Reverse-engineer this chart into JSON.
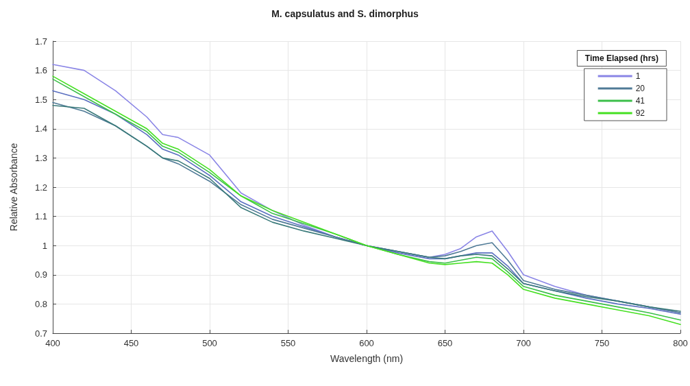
{
  "chart_data": {
    "type": "line",
    "title": "M. capsulatus and S. dimorphus",
    "xlabel": "Wavelength (nm)",
    "ylabel": "Relative Absorbance",
    "legend_title": "Time Elapsed (hrs)",
    "x": [
      400,
      420,
      440,
      460,
      470,
      480,
      500,
      520,
      540,
      560,
      580,
      600,
      620,
      640,
      650,
      660,
      670,
      680,
      690,
      700,
      720,
      740,
      760,
      780,
      800
    ],
    "series": [
      {
        "name": "1",
        "color": "#8a85e6",
        "values": [
          1.62,
          1.6,
          1.53,
          1.44,
          1.38,
          1.37,
          1.31,
          1.18,
          1.12,
          1.07,
          1.03,
          1.0,
          0.98,
          0.96,
          0.97,
          0.99,
          1.03,
          1.05,
          0.98,
          0.9,
          0.86,
          0.83,
          0.81,
          0.79,
          0.77
        ]
      },
      {
        "color": "#5a6fc0",
        "values": [
          1.53,
          1.5,
          1.45,
          1.38,
          1.33,
          1.31,
          1.24,
          1.15,
          1.1,
          1.065,
          1.03,
          1.0,
          0.975,
          0.955,
          0.955,
          0.965,
          0.975,
          0.975,
          0.93,
          0.87,
          0.845,
          0.82,
          0.8,
          0.785,
          0.765
        ]
      },
      {
        "name": "20",
        "color": "#4f7a96",
        "values": [
          1.49,
          1.46,
          1.41,
          1.34,
          1.3,
          1.28,
          1.22,
          1.14,
          1.09,
          1.06,
          1.03,
          1.0,
          0.98,
          0.96,
          0.965,
          0.98,
          1.0,
          1.01,
          0.95,
          0.88,
          0.85,
          0.83,
          0.81,
          0.79,
          0.77
        ]
      },
      {
        "color": "#3a7a7a",
        "values": [
          1.48,
          1.47,
          1.41,
          1.34,
          1.3,
          1.29,
          1.23,
          1.13,
          1.08,
          1.05,
          1.025,
          1.0,
          0.98,
          0.96,
          0.955,
          0.965,
          0.97,
          0.965,
          0.92,
          0.87,
          0.845,
          0.825,
          0.81,
          0.79,
          0.775
        ]
      },
      {
        "name": "41",
        "color": "#3cbf4a",
        "values": [
          1.57,
          1.51,
          1.45,
          1.39,
          1.34,
          1.32,
          1.25,
          1.17,
          1.11,
          1.075,
          1.04,
          1.0,
          0.97,
          0.945,
          0.94,
          0.95,
          0.96,
          0.955,
          0.91,
          0.86,
          0.83,
          0.81,
          0.79,
          0.77,
          0.745
        ]
      },
      {
        "name": "92",
        "color": "#45e021",
        "values": [
          1.58,
          1.52,
          1.46,
          1.4,
          1.35,
          1.33,
          1.26,
          1.17,
          1.12,
          1.08,
          1.04,
          1.0,
          0.97,
          0.94,
          0.935,
          0.94,
          0.945,
          0.94,
          0.9,
          0.85,
          0.82,
          0.8,
          0.78,
          0.76,
          0.73
        ]
      }
    ],
    "xlim": [
      400,
      800
    ],
    "xticks": [
      400,
      450,
      500,
      550,
      600,
      650,
      700,
      750,
      800
    ],
    "ylim": [
      0.7,
      1.7
    ],
    "yticks": [
      0.7,
      0.8,
      0.9,
      1,
      1.1,
      1.2,
      1.3,
      1.4,
      1.5,
      1.6,
      1.7
    ],
    "grid": true,
    "legend": "top right",
    "marker": "none",
    "line_style": "solid"
  }
}
